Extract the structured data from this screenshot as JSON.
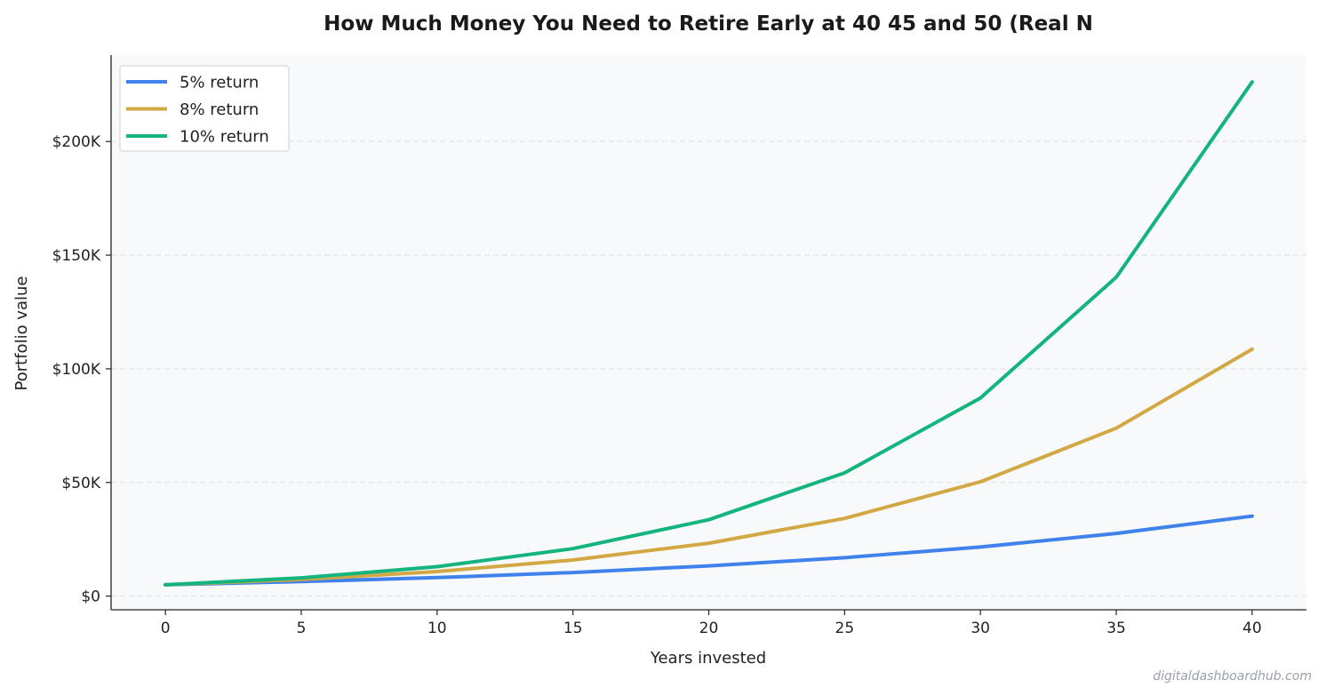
{
  "chart_data": {
    "type": "line",
    "title": "How Much Money You Need to Retire Early at 40  45  and 50 (Real N",
    "xlabel": "Years invested",
    "ylabel": "Portfolio value",
    "x": [
      0,
      5,
      10,
      15,
      20,
      25,
      30,
      35,
      40
    ],
    "xlim": [
      -2,
      42
    ],
    "ylim": [
      -6000,
      238000
    ],
    "x_ticks": [
      0,
      5,
      10,
      15,
      20,
      25,
      30,
      35,
      40
    ],
    "y_ticks": [
      0,
      50000,
      100000,
      150000,
      200000
    ],
    "y_tick_labels": [
      "$0",
      "$50K",
      "$100K",
      "$150K",
      "$200K"
    ],
    "grid": "horizontal dashed",
    "legend_position": "top-left",
    "series": [
      {
        "name": "5% return",
        "color": "#3f82ec",
        "values": [
          5000,
          6400,
          8150,
          10400,
          13300,
          16900,
          21600,
          27600,
          35200
        ]
      },
      {
        "name": "8% return",
        "color": "#d1a843",
        "values": [
          5000,
          7350,
          10800,
          15900,
          23300,
          34200,
          50300,
          73900,
          108600
        ]
      },
      {
        "name": "10% return",
        "color": "#14b47e",
        "values": [
          5000,
          8050,
          12950,
          20900,
          33600,
          54200,
          87200,
          140300,
          226200
        ]
      }
    ],
    "plot_background": "#f7f9fa"
  },
  "watermark": "digitaldashboardhub.com"
}
